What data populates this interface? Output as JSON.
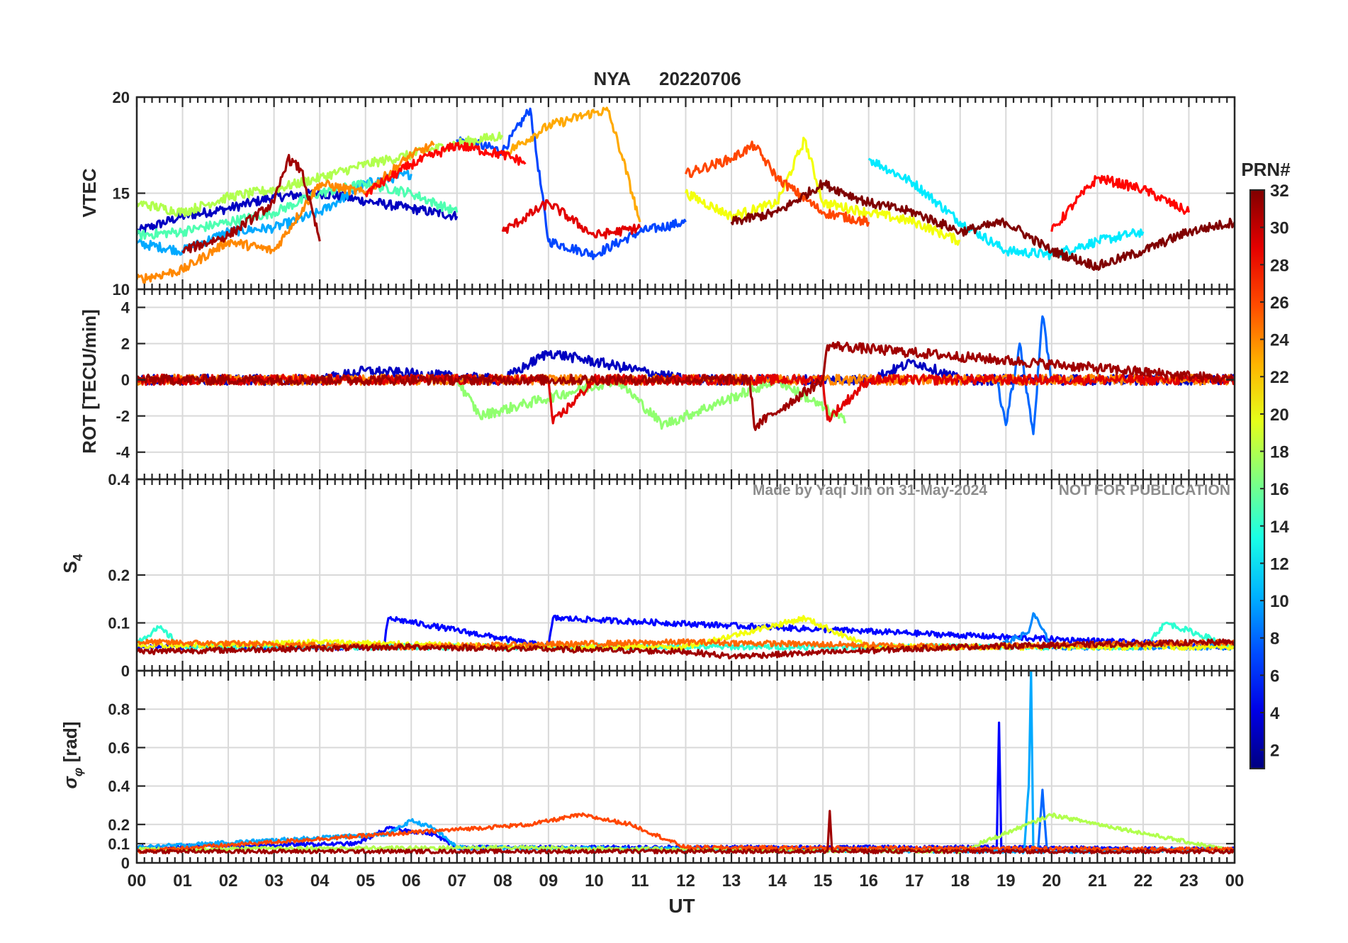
{
  "title": {
    "station": "NYA",
    "date": "20220706",
    "color": "#ff0000"
  },
  "watermark": {
    "author": "Made by Yaqi Jin on 31-May-2024",
    "notice": "NOT FOR PUBLICATION",
    "color": "#8c8c8c"
  },
  "colorbar": {
    "label": "PRN#",
    "range": [
      1,
      32
    ],
    "ticks": [
      "2",
      "4",
      "6",
      "8",
      "10",
      "12",
      "14",
      "16",
      "18",
      "20",
      "22",
      "24",
      "26",
      "28",
      "30",
      "32"
    ],
    "colormap": "jet"
  },
  "chart_data": [
    {
      "type": "line",
      "panel": "VTEC",
      "ylabel": "VTEC",
      "ylim": [
        10,
        20
      ],
      "yticks": [
        "10",
        "15",
        "20"
      ],
      "grid": true,
      "series": [
        {
          "prn": 3,
          "x": [
            0.0,
            1.0,
            2.0,
            3.0,
            4.0,
            5.0,
            6.0,
            7.0
          ],
          "y": [
            13.0,
            13.8,
            14.2,
            14.8,
            15.0,
            14.6,
            14.2,
            13.8
          ]
        },
        {
          "prn": 7,
          "x": [
            7.0,
            8.0,
            8.6,
            9.0,
            10.0,
            11.0,
            12.0
          ],
          "y": [
            17.8,
            17.2,
            19.4,
            12.5,
            11.8,
            13.0,
            13.5
          ]
        },
        {
          "prn": 10,
          "x": [
            0.0,
            1.0,
            2.0,
            3.0,
            4.0,
            5.0,
            6.0
          ],
          "y": [
            12.4,
            12.0,
            13.0,
            13.2,
            14.0,
            15.5,
            16.0
          ]
        },
        {
          "prn": 12,
          "x": [
            16.0,
            17.0,
            18.0,
            19.0,
            20.0,
            21.0,
            22.0
          ],
          "y": [
            16.8,
            15.5,
            13.5,
            12.0,
            11.8,
            12.5,
            13.0
          ]
        },
        {
          "prn": 15,
          "x": [
            0.0,
            1.0,
            2.0,
            3.0,
            4.0,
            5.0,
            6.0,
            7.0
          ],
          "y": [
            12.8,
            13.0,
            13.5,
            14.0,
            15.0,
            15.5,
            15.0,
            14.0
          ]
        },
        {
          "prn": 18,
          "x": [
            0.0,
            1.0,
            2.0,
            3.0,
            4.0,
            5.0,
            6.0,
            7.0,
            8.0
          ],
          "y": [
            14.5,
            14.0,
            14.8,
            15.2,
            15.8,
            16.5,
            17.0,
            17.6,
            18.0
          ]
        },
        {
          "prn": 20,
          "x": [
            12.0,
            13.0,
            14.0,
            14.6,
            15.0,
            16.0,
            17.0,
            18.0
          ],
          "y": [
            15.0,
            13.8,
            14.5,
            17.8,
            14.5,
            14.0,
            13.5,
            12.5
          ]
        },
        {
          "prn": 23,
          "x": [
            8.0,
            9.0,
            10.0,
            10.3,
            10.6,
            11.0
          ],
          "y": [
            17.0,
            18.5,
            19.2,
            19.3,
            17.0,
            13.5
          ]
        },
        {
          "prn": 24,
          "x": [
            0.0,
            1.0,
            2.0,
            3.0,
            4.0,
            5.0,
            6.0,
            6.5
          ],
          "y": [
            10.5,
            11.0,
            12.5,
            12.0,
            15.5,
            15.0,
            17.0,
            17.5
          ]
        },
        {
          "prn": 26,
          "x": [
            12.0,
            13.0,
            13.5,
            14.0,
            15.0,
            16.0
          ],
          "y": [
            16.0,
            16.8,
            17.5,
            15.8,
            14.0,
            13.5
          ]
        },
        {
          "prn": 28,
          "x": [
            20.0,
            20.5,
            21.0,
            22.0,
            23.0
          ],
          "y": [
            13.0,
            14.5,
            15.8,
            15.2,
            14.0
          ]
        },
        {
          "prn": 28,
          "x": [
            5.0,
            6.0,
            7.0,
            8.0,
            8.5
          ],
          "y": [
            15.0,
            16.5,
            17.5,
            17.0,
            16.6
          ]
        },
        {
          "prn": 29,
          "x": [
            8.0,
            9.0,
            10.0,
            11.0
          ],
          "y": [
            13.0,
            14.5,
            12.8,
            13.2
          ]
        },
        {
          "prn": 31,
          "x": [
            1.0,
            2.0,
            3.0,
            3.3,
            3.6,
            4.0
          ],
          "y": [
            12.0,
            12.8,
            14.5,
            16.8,
            16.2,
            12.5
          ]
        },
        {
          "prn": 32,
          "x": [
            13.0,
            14.0,
            15.0,
            16.0,
            17.0,
            18.0,
            19.0,
            20.0,
            21.0,
            22.0,
            23.0,
            24.0
          ],
          "y": [
            13.5,
            14.0,
            15.5,
            14.5,
            14.0,
            13.0,
            13.5,
            12.0,
            11.2,
            12.0,
            13.0,
            13.5
          ]
        }
      ]
    },
    {
      "type": "line",
      "panel": "ROT",
      "ylabel": "ROT [TECU/min]",
      "ylim": [
        -5.5,
        5
      ],
      "yticks": [
        "-4",
        "-2",
        "0",
        "2",
        "4"
      ],
      "grid": true,
      "series": [
        {
          "prn": 3,
          "x": [
            0,
            4,
            5,
            8,
            9,
            12,
            16,
            17,
            18,
            24
          ],
          "y": [
            0,
            0,
            0.5,
            0,
            1.5,
            0,
            0,
            1,
            0,
            0
          ]
        },
        {
          "prn": 8,
          "x": [
            18.8,
            19.0,
            19.3,
            19.6,
            19.8,
            20.0
          ],
          "y": [
            0,
            -2.5,
            2,
            -3,
            3.5,
            0
          ]
        },
        {
          "prn": 17,
          "x": [
            7.0,
            7.5,
            10.5,
            11.5,
            14.0,
            15.5
          ],
          "y": [
            0,
            -2,
            0,
            -2.5,
            0,
            -2.3
          ]
        },
        {
          "prn": 24,
          "x": [
            0,
            6,
            12,
            18,
            24
          ],
          "y": [
            0,
            0,
            0,
            0,
            0
          ]
        },
        {
          "prn": 29,
          "x": [
            0,
            9,
            9.1,
            10,
            15,
            15.1,
            16,
            24
          ],
          "y": [
            0,
            0,
            -2.4,
            0,
            0,
            -2.2,
            0,
            0
          ]
        },
        {
          "prn": 31,
          "x": [
            0,
            4,
            13.4,
            13.5,
            15,
            15.1,
            24
          ],
          "y": [
            0,
            0,
            0,
            -2.6,
            0,
            1.9,
            0
          ]
        }
      ]
    },
    {
      "type": "line",
      "panel": "S4",
      "ylabel": "S4",
      "ylim": [
        0,
        0.4
      ],
      "yticks": [
        "0",
        "0.1",
        "0.2",
        "0.4"
      ],
      "grid": true,
      "series": [
        {
          "prn": 5,
          "x": [
            0,
            5.4,
            5.5,
            9,
            9.1,
            24
          ],
          "y": [
            0.05,
            0.05,
            0.11,
            0.05,
            0.11,
            0.05
          ]
        },
        {
          "prn": 9,
          "x": [
            18.8,
            19.5,
            19.6,
            20,
            24
          ],
          "y": [
            0.05,
            0.08,
            0.12,
            0.05,
            0.05
          ]
        },
        {
          "prn": 14,
          "x": [
            0,
            0.5,
            1,
            22,
            22.5,
            24
          ],
          "y": [
            0.06,
            0.09,
            0.05,
            0.05,
            0.1,
            0.05
          ]
        },
        {
          "prn": 20,
          "x": [
            0,
            4,
            8,
            12,
            14.6,
            16,
            24
          ],
          "y": [
            0.05,
            0.06,
            0.05,
            0.05,
            0.11,
            0.05,
            0.05
          ]
        },
        {
          "prn": 25,
          "x": [
            0,
            6,
            12,
            18,
            24
          ],
          "y": [
            0.06,
            0.05,
            0.06,
            0.05,
            0.06
          ]
        },
        {
          "prn": 31,
          "x": [
            0,
            6,
            12,
            13,
            18,
            24
          ],
          "y": [
            0.04,
            0.05,
            0.04,
            0.03,
            0.05,
            0.06
          ]
        }
      ]
    },
    {
      "type": "line",
      "panel": "sigma_phi",
      "ylabel": "σφ [rad]",
      "ylim": [
        0,
        1
      ],
      "yticks": [
        "0",
        "0.1",
        "0.2",
        "0.4",
        "0.6",
        "0.8"
      ],
      "grid": true,
      "series": [
        {
          "prn": 5,
          "x": [
            0,
            4.8,
            5.5,
            6.5,
            7,
            18.8,
            18.85,
            18.9,
            24
          ],
          "y": [
            0.08,
            0.1,
            0.18,
            0.15,
            0.08,
            0.08,
            0.73,
            0.08,
            0.07
          ]
        },
        {
          "prn": 10,
          "x": [
            0,
            5.5,
            6.0,
            6.5,
            7,
            19.4,
            19.5,
            19.55,
            19.6,
            24
          ],
          "y": [
            0.08,
            0.15,
            0.22,
            0.18,
            0.08,
            0.06,
            0.4,
            1.0,
            0.06,
            0.07
          ]
        },
        {
          "prn": 8,
          "x": [
            19.7,
            19.8,
            19.9
          ],
          "y": [
            0.06,
            0.38,
            0.06
          ]
        },
        {
          "prn": 18,
          "x": [
            0,
            8,
            12,
            18,
            20,
            24
          ],
          "y": [
            0.07,
            0.08,
            0.07,
            0.06,
            0.25,
            0.06
          ]
        },
        {
          "prn": 26,
          "x": [
            0,
            8.6,
            9.7,
            10.8,
            12,
            24
          ],
          "y": [
            0.06,
            0.2,
            0.25,
            0.2,
            0.08,
            0.07
          ]
        },
        {
          "prn": 31,
          "x": [
            0,
            15.1,
            15.15,
            15.2,
            24
          ],
          "y": [
            0.06,
            0.06,
            0.27,
            0.06,
            0.06
          ]
        }
      ]
    }
  ],
  "xaxis": {
    "label": "UT",
    "range": [
      0,
      24
    ],
    "ticks": [
      "00",
      "01",
      "02",
      "03",
      "04",
      "05",
      "06",
      "07",
      "08",
      "09",
      "10",
      "11",
      "12",
      "13",
      "14",
      "15",
      "16",
      "17",
      "18",
      "19",
      "20",
      "21",
      "22",
      "23",
      "00"
    ]
  }
}
